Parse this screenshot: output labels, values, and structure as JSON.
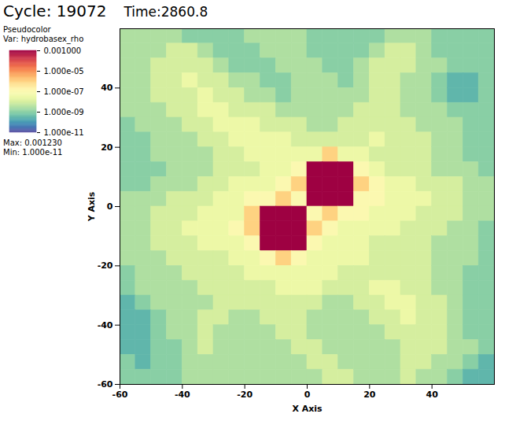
{
  "chart_data": {
    "type": "heatmap",
    "title": "Cycle: 19072",
    "subtitle": "Time:2860.8",
    "x_label": "X Axis",
    "y_label": "Y Axis",
    "xlim": [
      -60,
      60
    ],
    "ylim": [
      -60,
      60
    ],
    "xticks": [
      -60,
      -40,
      -20,
      0,
      20,
      40
    ],
    "yticks": [
      -60,
      -40,
      -20,
      0,
      20,
      40
    ],
    "x_edges": [
      -60,
      -55,
      -50,
      -45,
      -40,
      -35,
      -30,
      -25,
      -20,
      -15,
      -10,
      -5,
      0,
      5,
      10,
      15,
      20,
      25,
      30,
      35,
      40,
      45,
      50,
      55,
      60
    ],
    "y_edges": [
      60,
      55,
      50,
      45,
      40,
      35,
      30,
      25,
      20,
      15,
      10,
      5,
      0,
      -5,
      -10,
      -15,
      -20,
      -25,
      -30,
      -35,
      -40,
      -45,
      -50,
      -55,
      -60
    ],
    "cells": [
      [
        3e-09,
        3e-09,
        3e-09,
        3e-09,
        1e-09,
        1e-09,
        1e-09,
        1e-09,
        3e-09,
        3e-09,
        3e-09,
        3e-09,
        1e-09,
        1e-09,
        1e-09,
        1e-09,
        1e-09,
        3e-09,
        3e-09,
        3e-09,
        1e-09,
        1e-09,
        1e-09,
        1e-09
      ],
      [
        3e-09,
        3e-09,
        3e-09,
        1e-08,
        1e-08,
        3e-09,
        1e-09,
        1e-09,
        1e-09,
        3e-09,
        3e-09,
        3e-09,
        1e-09,
        1e-09,
        1e-09,
        1e-09,
        3e-09,
        1e-08,
        1e-08,
        3e-09,
        1e-09,
        1e-09,
        1e-09,
        1e-09
      ],
      [
        3e-09,
        3e-09,
        1e-08,
        1e-08,
        1e-08,
        1e-08,
        3e-09,
        1e-09,
        1e-09,
        1e-09,
        3e-09,
        3e-09,
        3e-09,
        1e-09,
        1e-09,
        3e-09,
        1e-08,
        1e-08,
        1e-08,
        3e-09,
        3e-09,
        1e-09,
        1e-09,
        1e-09
      ],
      [
        3e-09,
        3e-09,
        1e-08,
        1e-08,
        3e-08,
        1e-08,
        1e-08,
        3e-09,
        3e-09,
        1e-09,
        1e-09,
        3e-09,
        3e-09,
        3e-09,
        1e-09,
        3e-09,
        1e-08,
        1e-08,
        3e-09,
        3e-09,
        1e-09,
        3e-10,
        3e-10,
        1e-09
      ],
      [
        3e-09,
        3e-09,
        1e-08,
        1e-08,
        1e-08,
        3e-08,
        1e-08,
        1e-08,
        3e-09,
        3e-09,
        1e-09,
        3e-09,
        3e-09,
        3e-09,
        3e-09,
        3e-09,
        1e-08,
        1e-08,
        3e-09,
        3e-09,
        1e-09,
        3e-10,
        3e-10,
        1e-09
      ],
      [
        3e-09,
        3e-09,
        3e-09,
        1e-08,
        1e-08,
        3e-08,
        3e-08,
        1e-08,
        1e-08,
        1e-08,
        3e-09,
        3e-09,
        3e-09,
        3e-09,
        3e-09,
        1e-08,
        1e-08,
        1e-08,
        3e-09,
        3e-09,
        3e-09,
        1e-09,
        1e-09,
        1e-09
      ],
      [
        1e-09,
        3e-09,
        3e-09,
        3e-09,
        1e-08,
        1e-08,
        3e-08,
        3e-08,
        3e-08,
        1e-08,
        1e-08,
        1e-08,
        3e-09,
        3e-09,
        1e-08,
        1e-08,
        1e-08,
        1e-08,
        1e-08,
        3e-09,
        3e-09,
        3e-09,
        1e-09,
        1e-09
      ],
      [
        1e-09,
        1e-09,
        3e-09,
        3e-09,
        3e-09,
        1e-08,
        1e-08,
        3e-08,
        3e-08,
        3e-08,
        3e-08,
        1e-08,
        1e-08,
        1e-08,
        1e-08,
        1e-08,
        3e-08,
        1e-08,
        1e-08,
        1e-08,
        3e-09,
        3e-09,
        1e-09,
        1e-09
      ],
      [
        1e-09,
        1e-09,
        3e-09,
        3e-09,
        3e-09,
        3e-09,
        1e-08,
        1e-08,
        3e-08,
        3e-08,
        3e-08,
        3e-08,
        3e-08,
        1e-06,
        3e-08,
        3e-08,
        1e-08,
        1e-08,
        1e-08,
        1e-08,
        3e-09,
        3e-09,
        1e-09,
        1e-09
      ],
      [
        1e-09,
        1e-09,
        1e-09,
        3e-09,
        3e-09,
        3e-09,
        1e-08,
        1e-08,
        1e-08,
        3e-08,
        3e-08,
        1e-07,
        0.001,
        0.001,
        0.001,
        1e-07,
        3e-08,
        1e-08,
        1e-08,
        1e-08,
        3e-09,
        3e-09,
        3e-09,
        1e-09
      ],
      [
        1e-09,
        1e-09,
        3e-09,
        3e-09,
        3e-09,
        1e-08,
        1e-08,
        3e-08,
        3e-08,
        3e-08,
        1e-07,
        1e-06,
        0.001,
        0.001,
        0.001,
        1e-06,
        1e-07,
        3e-08,
        3e-08,
        1e-08,
        1e-08,
        1e-08,
        3e-09,
        3e-09
      ],
      [
        3e-09,
        3e-09,
        3e-09,
        1e-08,
        1e-08,
        1e-08,
        3e-08,
        3e-08,
        1e-07,
        1e-07,
        1e-06,
        1e-07,
        0.001,
        0.001,
        0.001,
        1e-07,
        1e-07,
        3e-08,
        3e-08,
        3e-08,
        1e-08,
        1e-08,
        3e-09,
        3e-09
      ],
      [
        3e-09,
        3e-09,
        1e-08,
        1e-08,
        1e-08,
        3e-08,
        3e-08,
        3e-08,
        1e-06,
        0.001,
        0.001,
        0.001,
        1e-07,
        1e-06,
        1e-07,
        1e-07,
        3e-08,
        3e-08,
        3e-08,
        1e-08,
        1e-08,
        1e-08,
        3e-09,
        3e-09
      ],
      [
        3e-09,
        3e-09,
        1e-08,
        1e-08,
        3e-08,
        3e-08,
        3e-08,
        1e-07,
        1e-06,
        0.001,
        0.001,
        0.001,
        1e-06,
        1e-07,
        3e-08,
        3e-08,
        3e-08,
        3e-08,
        1e-08,
        1e-08,
        1e-08,
        3e-09,
        3e-09,
        1e-09
      ],
      [
        3e-09,
        3e-09,
        1e-08,
        1e-08,
        1e-08,
        3e-08,
        3e-08,
        3e-08,
        1e-07,
        0.001,
        0.001,
        0.001,
        1e-07,
        3e-08,
        3e-08,
        3e-08,
        1e-08,
        1e-08,
        1e-08,
        1e-08,
        3e-09,
        3e-09,
        3e-09,
        1e-09
      ],
      [
        3e-09,
        3e-09,
        3e-09,
        1e-08,
        1e-08,
        1e-08,
        1e-08,
        3e-08,
        3e-08,
        1e-07,
        1e-06,
        1e-07,
        3e-08,
        3e-08,
        3e-08,
        3e-08,
        1e-08,
        1e-08,
        1e-08,
        1e-08,
        3e-09,
        3e-09,
        3e-09,
        1e-09
      ],
      [
        1e-09,
        3e-09,
        3e-09,
        3e-09,
        1e-08,
        1e-08,
        1e-08,
        1e-08,
        3e-08,
        3e-08,
        3e-08,
        3e-08,
        3e-08,
        3e-08,
        1e-08,
        1e-08,
        1e-08,
        1e-08,
        1e-08,
        1e-08,
        3e-09,
        3e-09,
        1e-09,
        1e-09
      ],
      [
        1e-09,
        3e-09,
        3e-09,
        3e-09,
        3e-09,
        1e-08,
        1e-08,
        1e-08,
        1e-08,
        1e-08,
        3e-08,
        3e-08,
        3e-08,
        1e-08,
        1e-08,
        1e-08,
        3e-08,
        3e-08,
        1e-08,
        1e-08,
        3e-09,
        3e-09,
        1e-09,
        1e-09
      ],
      [
        3e-10,
        1e-09,
        3e-09,
        3e-09,
        3e-09,
        3e-09,
        1e-08,
        1e-08,
        1e-08,
        1e-08,
        1e-08,
        1e-08,
        1e-08,
        3e-09,
        3e-09,
        1e-08,
        1e-08,
        3e-08,
        3e-08,
        1e-08,
        1e-08,
        3e-09,
        1e-09,
        1e-09
      ],
      [
        3e-10,
        3e-10,
        1e-09,
        3e-09,
        3e-09,
        1e-08,
        1e-08,
        3e-09,
        3e-09,
        1e-08,
        1e-08,
        1e-08,
        3e-09,
        3e-09,
        3e-09,
        3e-09,
        1e-08,
        1e-08,
        3e-08,
        1e-08,
        1e-08,
        3e-09,
        1e-09,
        1e-09
      ],
      [
        3e-10,
        3e-10,
        1e-09,
        3e-09,
        3e-09,
        1e-08,
        3e-09,
        3e-09,
        3e-09,
        3e-09,
        1e-08,
        1e-08,
        3e-09,
        3e-09,
        3e-09,
        3e-09,
        3e-09,
        1e-08,
        1e-08,
        1e-08,
        1e-08,
        3e-09,
        1e-09,
        1e-09
      ],
      [
        3e-10,
        3e-10,
        1e-09,
        1e-09,
        3e-09,
        1e-08,
        3e-09,
        3e-09,
        3e-09,
        3e-09,
        3e-09,
        1e-08,
        1e-08,
        3e-09,
        3e-09,
        3e-09,
        3e-09,
        3e-09,
        1e-08,
        1e-08,
        1e-08,
        3e-09,
        3e-09,
        1e-09
      ],
      [
        1e-09,
        3e-10,
        1e-09,
        1e-09,
        3e-09,
        3e-09,
        3e-09,
        3e-09,
        3e-09,
        3e-09,
        3e-09,
        3e-09,
        1e-08,
        1e-08,
        3e-09,
        3e-09,
        3e-09,
        3e-09,
        1e-08,
        1e-08,
        3e-09,
        3e-09,
        1e-09,
        3e-10
      ],
      [
        1e-09,
        1e-09,
        1e-09,
        1e-09,
        3e-09,
        3e-09,
        3e-09,
        3e-09,
        3e-09,
        3e-09,
        3e-09,
        3e-09,
        3e-09,
        1e-08,
        1e-08,
        3e-09,
        3e-09,
        3e-09,
        1e-08,
        3e-09,
        3e-09,
        1e-09,
        3e-10,
        3e-10
      ]
    ],
    "colorbar": {
      "title": "Pseudocolor",
      "label": "Var: hydrobasex_rho",
      "range": [
        1e-11,
        0.001
      ],
      "log": true,
      "ticks": [
        {
          "value": 0.001,
          "label": "0.001000"
        },
        {
          "value": 1e-05,
          "label": "1.000e-05"
        },
        {
          "value": 1e-07,
          "label": "1.000e-07"
        },
        {
          "value": 1e-09,
          "label": "1.000e-09"
        },
        {
          "value": 1e-11,
          "label": "1.000e-11"
        }
      ],
      "max_label": "Max: 0.001230",
      "min_label": "Min: 1.000e-11"
    }
  }
}
